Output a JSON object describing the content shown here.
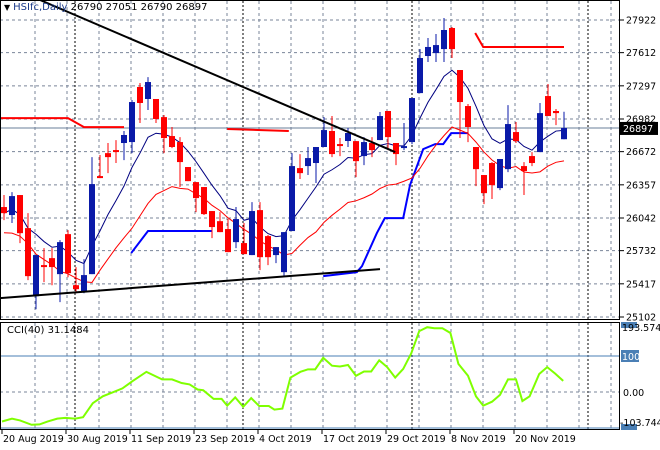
{
  "header": {
    "symbol": "HSIfc,Daily",
    "open": "26790",
    "high": "27051",
    "low": "26790",
    "close": "26897"
  },
  "colors": {
    "bull": "#0a1aa8",
    "bear": "#ff0000",
    "cci": "#7fff00",
    "ma_fast": "#000080",
    "ma_slow": "#ff0000",
    "level_red": "#ff0000",
    "level_blue": "#0000ff",
    "grid": "#7a8599",
    "current_line": "#6a7f9a"
  },
  "price_axis": {
    "ticks": [
      "27922",
      "27612",
      "27297",
      "26982",
      "26672",
      "26357",
      "26042",
      "25732",
      "25417",
      "25102"
    ],
    "current_price": "26897"
  },
  "cci_panel": {
    "title": "CCI(40) 31.1484",
    "axis_labels": {
      "max": "193.5745",
      "level": "100",
      "zero": "0.00",
      "min": "-103.744"
    }
  },
  "date_labels": [
    "20 Aug 2019",
    "30 Aug 2019",
    "11 Sep 2019",
    "23 Sep 2019",
    "4 Oct 2019",
    "17 Oct 2019",
    "29 Oct 2019",
    "8 Nov 2019",
    "20 Nov 2019"
  ],
  "chart_data": {
    "type": "candlestick",
    "title": "HSIfc,Daily",
    "ylim": [
      25102,
      27922
    ],
    "ohlc": [
      [
        26146,
        26260,
        26022,
        26088
      ],
      [
        26070,
        26288,
        25994,
        26250
      ],
      [
        26260,
        26260,
        25804,
        25898
      ],
      [
        25946,
        26088,
        25452,
        25490
      ],
      [
        25300,
        25690,
        25176,
        25690
      ],
      [
        25595,
        25756,
        25433,
        25576
      ],
      [
        25661,
        25756,
        25404,
        25576
      ],
      [
        25509,
        25832,
        25243,
        25813
      ],
      [
        25889,
        25927,
        25480,
        25518
      ],
      [
        25404,
        25576,
        25328,
        25366
      ],
      [
        25338,
        25652,
        25328,
        25500
      ],
      [
        25509,
        26620,
        25509,
        26364
      ],
      [
        26440,
        26640,
        26421,
        26421
      ],
      [
        26658,
        26754,
        26468,
        26620
      ],
      [
        26687,
        26782,
        26564,
        26668
      ],
      [
        26754,
        26868,
        26592,
        26830
      ],
      [
        26763,
        27162,
        26658,
        27143
      ],
      [
        27286,
        27324,
        26944,
        27134
      ],
      [
        27172,
        27380,
        27067,
        27333
      ],
      [
        27172,
        27172,
        26944,
        26982
      ],
      [
        27000,
        27020,
        26658,
        26801
      ],
      [
        26820,
        26906,
        26706,
        26716
      ],
      [
        26763,
        26810,
        26336,
        26573
      ],
      [
        26526,
        26526,
        26392,
        26392
      ],
      [
        26383,
        26383,
        26098,
        26231
      ],
      [
        26336,
        26336,
        26070,
        26079
      ],
      [
        26108,
        26108,
        25851,
        25956
      ],
      [
        26012,
        26098,
        25908,
        25908
      ],
      [
        25937,
        26032,
        25718,
        25718
      ],
      [
        25813,
        26146,
        25756,
        26032
      ],
      [
        25804,
        25994,
        25699,
        25699
      ],
      [
        25690,
        26193,
        25690,
        26108
      ],
      [
        26117,
        26193,
        25547,
        25670
      ],
      [
        25870,
        25880,
        25595,
        25670
      ],
      [
        25690,
        25766,
        25614,
        25766
      ],
      [
        25528,
        25908,
        25490,
        25908
      ],
      [
        25918,
        26658,
        25918,
        26535
      ],
      [
        26516,
        26649,
        26412,
        26468
      ],
      [
        26535,
        26716,
        26450,
        26611
      ],
      [
        26564,
        26716,
        26374,
        26716
      ],
      [
        26716,
        27000,
        26716,
        26877
      ],
      [
        26868,
        27010,
        26620,
        26649
      ],
      [
        26744,
        26801,
        26630,
        26725
      ],
      [
        26773,
        26896,
        26716,
        26849
      ],
      [
        26772,
        26772,
        26430,
        26582
      ],
      [
        26630,
        26810,
        26544,
        26763
      ],
      [
        26754,
        26810,
        26620,
        26687
      ],
      [
        26782,
        27048,
        26782,
        27010
      ],
      [
        27058,
        27058,
        26687,
        26810
      ],
      [
        26754,
        26754,
        26544,
        26649
      ],
      [
        26706,
        26944,
        26687,
        26725
      ],
      [
        26763,
        27181,
        26744,
        27181
      ],
      [
        27228,
        27646,
        27228,
        27561
      ],
      [
        27580,
        27751,
        27523,
        27666
      ],
      [
        27608,
        27789,
        27523,
        27684
      ],
      [
        27646,
        27941,
        27523,
        27827
      ],
      [
        27846,
        27856,
        27561,
        27646
      ],
      [
        27447,
        27447,
        26801,
        27143
      ],
      [
        27105,
        27124,
        26763,
        26906
      ],
      [
        26716,
        26716,
        26345,
        26506
      ],
      [
        26450,
        26450,
        26174,
        26278
      ],
      [
        26564,
        26573,
        26222,
        26354
      ],
      [
        26326,
        26602,
        26307,
        26602
      ],
      [
        26506,
        27114,
        26478,
        26934
      ],
      [
        26858,
        26953,
        26754,
        26772
      ],
      [
        26535,
        26573,
        26260,
        26488
      ],
      [
        26630,
        26668,
        26535,
        26564
      ],
      [
        26668,
        27134,
        26668,
        27038
      ],
      [
        27200,
        27314,
        27010,
        27010
      ],
      [
        27058,
        27077,
        26924,
        27038
      ],
      [
        26790,
        27051,
        26790,
        26897
      ]
    ],
    "trendlines": [
      {
        "name": "resistance-trendline",
        "points": [
          [
            4.5,
            28112
          ],
          [
            48.9,
            26668
          ]
        ]
      },
      {
        "name": "support-trendline",
        "points": [
          [
            -0.5,
            25281
          ],
          [
            47,
            25557
          ]
        ]
      }
    ],
    "red_levels": [
      [
        [
          -0.5,
          26990
        ],
        [
          8,
          26990
        ],
        [
          10,
          26905
        ],
        [
          15,
          26905
        ]
      ],
      [
        [
          27.9,
          26887
        ],
        [
          35.6,
          26868
        ]
      ],
      [
        [
          58.9,
          27798
        ],
        [
          59.9,
          27666
        ],
        [
          70,
          27666
        ]
      ]
    ],
    "blue_levels": [
      [
        [
          15.9,
          25709
        ],
        [
          18,
          25918
        ],
        [
          26,
          25918
        ]
      ],
      [
        [
          39.9,
          25490
        ],
        [
          44.1,
          25528
        ],
        [
          44.75,
          25585
        ],
        [
          46.6,
          25898
        ],
        [
          47.6,
          26041
        ],
        [
          49.9,
          26041
        ],
        [
          50.75,
          26354
        ],
        [
          52.4,
          26696
        ],
        [
          53.9,
          26744
        ],
        [
          54.9,
          26744
        ],
        [
          55.9,
          26848
        ],
        [
          58,
          26848
        ]
      ]
    ],
    "cci": {
      "period": 40,
      "ylim": [
        -103.744,
        193.5745
      ],
      "levels": [
        100,
        0
      ],
      "points": [
        [
          -0.25,
          -82
        ],
        [
          1,
          -74
        ],
        [
          2,
          -79
        ],
        [
          3.45,
          -91
        ],
        [
          4.44,
          -90
        ],
        [
          5.43,
          -82
        ],
        [
          6.66,
          -74
        ],
        [
          7.65,
          -72
        ],
        [
          8.89,
          -74
        ],
        [
          9.88,
          -70
        ],
        [
          11.1,
          -31
        ],
        [
          12.35,
          -12
        ],
        [
          13.6,
          -1
        ],
        [
          14.8,
          10
        ],
        [
          16.05,
          30
        ],
        [
          17.8,
          56
        ],
        [
          19.76,
          35
        ],
        [
          21,
          35
        ],
        [
          22.2,
          25
        ],
        [
          23.2,
          21
        ],
        [
          24.2,
          7
        ],
        [
          24.9,
          5
        ],
        [
          26.2,
          -19
        ],
        [
          27.2,
          -19
        ],
        [
          27.9,
          -38
        ],
        [
          28.9,
          -15
        ],
        [
          29.9,
          -41
        ],
        [
          30.9,
          -17
        ],
        [
          31.9,
          -39
        ],
        [
          33.1,
          -39
        ],
        [
          33.8,
          -49
        ],
        [
          34.8,
          -46
        ],
        [
          35.8,
          40
        ],
        [
          37.05,
          56
        ],
        [
          38,
          63
        ],
        [
          38.9,
          63
        ],
        [
          39.9,
          95
        ],
        [
          41,
          73
        ],
        [
          42,
          71
        ],
        [
          43,
          75
        ],
        [
          44,
          45
        ],
        [
          45,
          57
        ],
        [
          45.9,
          57
        ],
        [
          46.9,
          88
        ],
        [
          47.9,
          69
        ],
        [
          48.9,
          40
        ],
        [
          49.9,
          64
        ],
        [
          50.9,
          107
        ],
        [
          51.9,
          169
        ],
        [
          52.9,
          180
        ],
        [
          53.8,
          177
        ],
        [
          54.8,
          177
        ],
        [
          55.8,
          164
        ],
        [
          56.8,
          78
        ],
        [
          58,
          45
        ],
        [
          59,
          -12
        ],
        [
          59.9,
          -38
        ],
        [
          61,
          -27
        ],
        [
          62,
          -8
        ],
        [
          63,
          35
        ],
        [
          64,
          35
        ],
        [
          64.8,
          -25
        ],
        [
          65.7,
          -12
        ],
        [
          66.9,
          50
        ],
        [
          67.9,
          69
        ],
        [
          68.9,
          51
        ],
        [
          69.9,
          31
        ]
      ]
    }
  }
}
